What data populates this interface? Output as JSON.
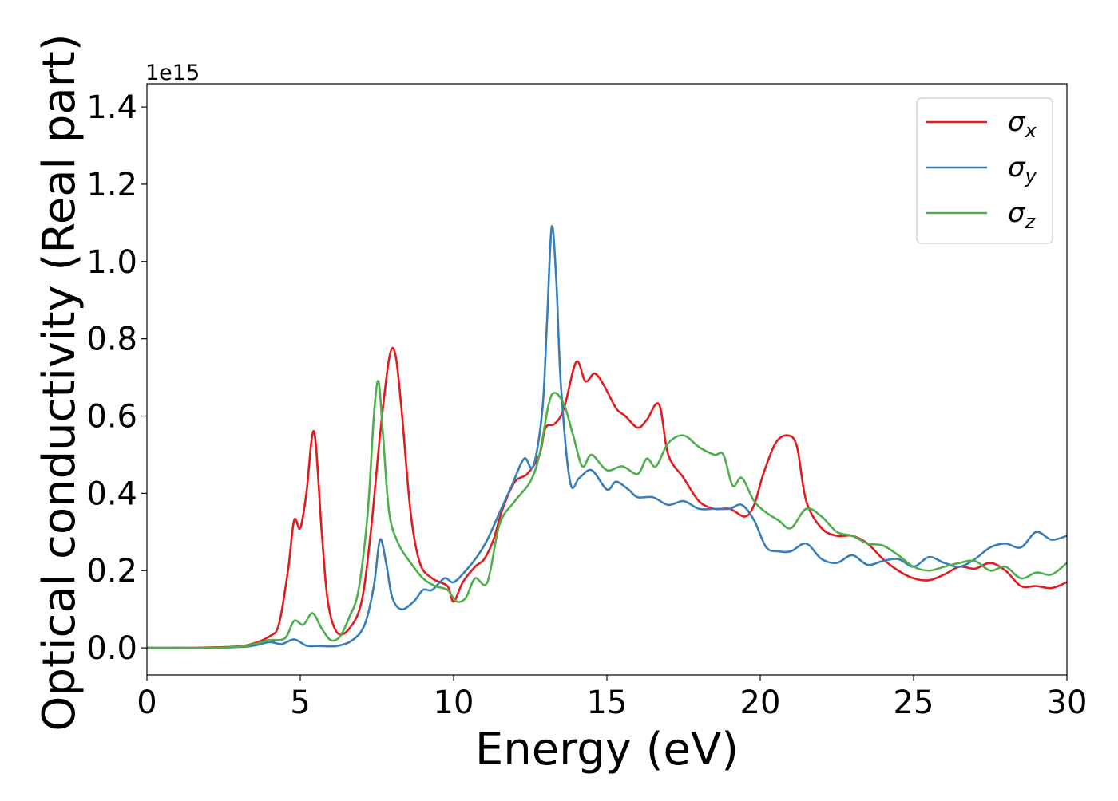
{
  "chart_data": {
    "type": "line",
    "title": "",
    "xlabel": "Energy (eV)",
    "ylabel": "Optical conductivity (Real part)",
    "y_offset_text": "1e15",
    "xlim": [
      0,
      30
    ],
    "ylim": [
      -0.07,
      1.46
    ],
    "x_ticks": [
      0,
      5,
      10,
      15,
      20,
      25,
      30
    ],
    "x_tick_labels": [
      "0",
      "5",
      "10",
      "15",
      "20",
      "25",
      "30"
    ],
    "y_ticks": [
      0.0,
      0.2,
      0.4,
      0.6,
      0.8,
      1.0,
      1.2,
      1.4
    ],
    "y_tick_labels": [
      "0.0",
      "0.2",
      "0.4",
      "0.6",
      "0.8",
      "1.0",
      "1.2",
      "1.4"
    ],
    "grid": false,
    "legend_position": "top-right",
    "series": [
      {
        "name": "σ",
        "subscript": "x",
        "color": "#e41a1c",
        "x": [
          0,
          1,
          2,
          3,
          3.5,
          4.0,
          4.3,
          4.6,
          4.8,
          5.0,
          5.2,
          5.45,
          5.7,
          5.9,
          6.2,
          6.6,
          7.0,
          7.3,
          7.6,
          7.9,
          8.1,
          8.3,
          8.6,
          8.9,
          9.3,
          9.8,
          10.0,
          10.3,
          10.7,
          11.0,
          11.3,
          11.6,
          12.0,
          12.4,
          12.8,
          13.0,
          13.3,
          13.6,
          14.0,
          14.3,
          14.6,
          14.9,
          15.3,
          15.6,
          16.0,
          16.3,
          16.7,
          17.0,
          17.5,
          18.0,
          18.5,
          19.0,
          19.5,
          19.8,
          20.1,
          20.5,
          20.9,
          21.2,
          21.5,
          22.0,
          22.5,
          23.0,
          23.5,
          24.0,
          24.5,
          25.0,
          25.5,
          26.0,
          26.5,
          27.0,
          27.5,
          28.0,
          28.5,
          29.0,
          29.5,
          30.0
        ],
        "values": [
          0,
          0,
          0.001,
          0.004,
          0.012,
          0.03,
          0.06,
          0.2,
          0.33,
          0.31,
          0.4,
          0.56,
          0.3,
          0.12,
          0.04,
          0.05,
          0.12,
          0.3,
          0.55,
          0.75,
          0.76,
          0.62,
          0.35,
          0.22,
          0.18,
          0.16,
          0.12,
          0.17,
          0.21,
          0.23,
          0.28,
          0.36,
          0.43,
          0.45,
          0.5,
          0.57,
          0.58,
          0.62,
          0.74,
          0.69,
          0.71,
          0.68,
          0.62,
          0.6,
          0.57,
          0.59,
          0.63,
          0.5,
          0.44,
          0.38,
          0.36,
          0.36,
          0.34,
          0.37,
          0.45,
          0.53,
          0.55,
          0.52,
          0.38,
          0.31,
          0.29,
          0.29,
          0.27,
          0.23,
          0.2,
          0.18,
          0.175,
          0.19,
          0.21,
          0.205,
          0.22,
          0.2,
          0.16,
          0.16,
          0.155,
          0.17
        ]
      },
      {
        "name": "σ",
        "subscript": "y",
        "color": "#377eb8",
        "x": [
          0,
          1,
          2,
          3,
          3.5,
          4.0,
          4.4,
          4.8,
          5.2,
          5.6,
          6.2,
          6.7,
          7.1,
          7.4,
          7.6,
          7.8,
          8.0,
          8.3,
          8.7,
          9.0,
          9.3,
          9.7,
          10.0,
          10.4,
          10.8,
          11.1,
          11.5,
          11.9,
          12.3,
          12.6,
          12.9,
          13.05,
          13.2,
          13.35,
          13.5,
          13.8,
          14.1,
          14.5,
          15.0,
          15.3,
          15.7,
          16.0,
          16.5,
          17.0,
          17.5,
          18.0,
          18.5,
          19.0,
          19.4,
          19.8,
          20.2,
          20.6,
          21.0,
          21.5,
          22.0,
          22.5,
          23.0,
          23.5,
          24.0,
          24.5,
          25.0,
          25.5,
          26.0,
          26.5,
          27.0,
          27.5,
          28.0,
          28.5,
          29.0,
          29.5,
          30.0
        ],
        "values": [
          0,
          0,
          0,
          0.002,
          0.006,
          0.015,
          0.01,
          0.022,
          0.006,
          0.005,
          0.005,
          0.02,
          0.06,
          0.16,
          0.28,
          0.22,
          0.13,
          0.1,
          0.12,
          0.15,
          0.15,
          0.18,
          0.17,
          0.2,
          0.24,
          0.28,
          0.35,
          0.42,
          0.49,
          0.47,
          0.62,
          0.85,
          1.09,
          0.95,
          0.68,
          0.43,
          0.44,
          0.46,
          0.41,
          0.43,
          0.41,
          0.39,
          0.39,
          0.37,
          0.38,
          0.36,
          0.36,
          0.36,
          0.37,
          0.33,
          0.26,
          0.25,
          0.25,
          0.27,
          0.23,
          0.22,
          0.24,
          0.215,
          0.225,
          0.23,
          0.21,
          0.235,
          0.22,
          0.21,
          0.23,
          0.26,
          0.27,
          0.26,
          0.3,
          0.28,
          0.29
        ]
      },
      {
        "name": "σ",
        "subscript": "z",
        "color": "#4daf4a",
        "x": [
          0,
          1,
          2,
          3,
          3.5,
          4.0,
          4.5,
          4.8,
          5.1,
          5.4,
          5.7,
          6.0,
          6.3,
          6.6,
          6.9,
          7.2,
          7.4,
          7.55,
          7.7,
          7.9,
          8.2,
          8.6,
          9.0,
          9.4,
          9.8,
          10.1,
          10.4,
          10.7,
          11.1,
          11.5,
          12.0,
          12.5,
          12.8,
          13.1,
          13.3,
          13.6,
          13.9,
          14.2,
          14.5,
          15.0,
          15.5,
          16.0,
          16.3,
          16.6,
          17.0,
          17.5,
          18.0,
          18.5,
          18.8,
          19.1,
          19.4,
          19.8,
          20.2,
          20.6,
          21.0,
          21.5,
          22.0,
          22.5,
          23.0,
          23.5,
          24.0,
          24.5,
          25.0,
          25.5,
          26.0,
          26.5,
          27.0,
          27.5,
          28.0,
          28.5,
          29.0,
          29.5,
          30.0
        ],
        "values": [
          0,
          0,
          0,
          0.003,
          0.01,
          0.02,
          0.025,
          0.07,
          0.06,
          0.09,
          0.05,
          0.02,
          0.03,
          0.08,
          0.15,
          0.35,
          0.6,
          0.69,
          0.55,
          0.35,
          0.27,
          0.22,
          0.18,
          0.16,
          0.15,
          0.12,
          0.13,
          0.18,
          0.17,
          0.32,
          0.38,
          0.43,
          0.5,
          0.63,
          0.66,
          0.63,
          0.55,
          0.47,
          0.5,
          0.46,
          0.47,
          0.45,
          0.49,
          0.47,
          0.53,
          0.55,
          0.52,
          0.5,
          0.5,
          0.42,
          0.44,
          0.38,
          0.35,
          0.33,
          0.31,
          0.36,
          0.34,
          0.3,
          0.29,
          0.27,
          0.265,
          0.24,
          0.21,
          0.2,
          0.21,
          0.22,
          0.225,
          0.2,
          0.21,
          0.18,
          0.195,
          0.19,
          0.22
        ]
      }
    ]
  }
}
